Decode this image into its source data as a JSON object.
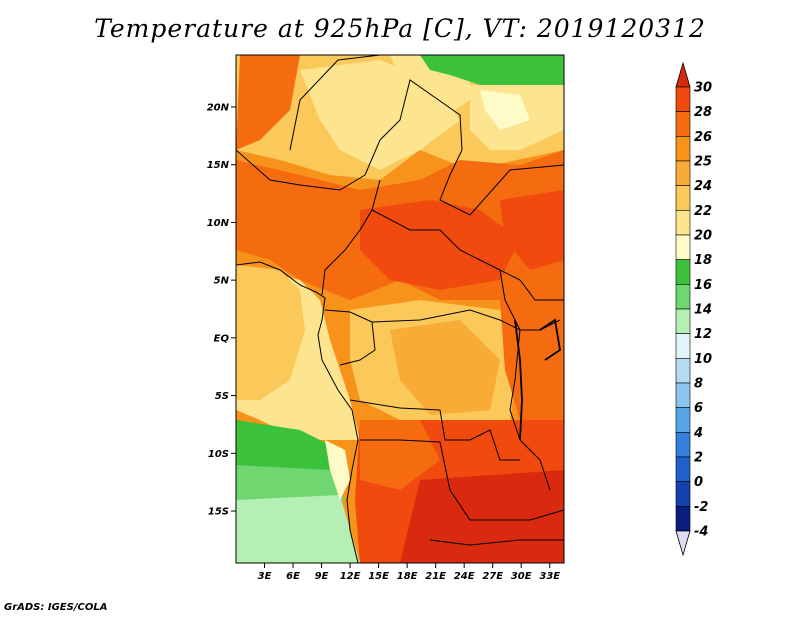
{
  "title": "Temperature at 925hPa [C], VT: 2019120312",
  "footer": "GrADS: IGES/COLA",
  "map": {
    "variable": "temperature_925hPa",
    "units": "C",
    "valid_time": "2019120312",
    "lat_range": [
      -19.5,
      24.5
    ],
    "lon_range": [
      0,
      34.5
    ],
    "lat_ticks": [
      {
        "lat": 20,
        "label": "20N"
      },
      {
        "lat": 15,
        "label": "15N"
      },
      {
        "lat": 10,
        "label": "10N"
      },
      {
        "lat": 5,
        "label": "5N"
      },
      {
        "lat": 0,
        "label": "EQ"
      },
      {
        "lat": -5,
        "label": "5S"
      },
      {
        "lat": -10,
        "label": "10S"
      },
      {
        "lat": -15,
        "label": "15S"
      }
    ],
    "lon_ticks": [
      {
        "lon": 3,
        "label": "3E"
      },
      {
        "lon": 6,
        "label": "6E"
      },
      {
        "lon": 9,
        "label": "9E"
      },
      {
        "lon": 12,
        "label": "12E"
      },
      {
        "lon": 15,
        "label": "15E"
      },
      {
        "lon": 18,
        "label": "18E"
      },
      {
        "lon": 21,
        "label": "21E"
      },
      {
        "lon": 24,
        "label": "24E"
      },
      {
        "lon": 27,
        "label": "27E"
      },
      {
        "lon": 30,
        "label": "30E"
      },
      {
        "lon": 33,
        "label": "33E"
      }
    ]
  },
  "colorbar": {
    "levels": [
      {
        "label": "30",
        "color": "#d92a0f"
      },
      {
        "label": "28",
        "color": "#f04a0f"
      },
      {
        "label": "26",
        "color": "#f46b10"
      },
      {
        "label": "25",
        "color": "#f7921a"
      },
      {
        "label": "24",
        "color": "#f9ac35"
      },
      {
        "label": "22",
        "color": "#fbc85a"
      },
      {
        "label": "20",
        "color": "#fde590"
      },
      {
        "label": "18",
        "color": "#fffbc8"
      },
      {
        "label": "16",
        "color": "#3cc13c"
      },
      {
        "label": "14",
        "color": "#70d770"
      },
      {
        "label": "12",
        "color": "#b4f0b4"
      },
      {
        "label": "10",
        "color": "#e1f4fa"
      },
      {
        "label": "8",
        "color": "#b3dcf2"
      },
      {
        "label": "6",
        "color": "#8cc5ee"
      },
      {
        "label": "4",
        "color": "#5aa5e6"
      },
      {
        "label": "2",
        "color": "#3480dc"
      },
      {
        "label": "0",
        "color": "#2060cc"
      },
      {
        "label": "-2",
        "color": "#1440b0"
      },
      {
        "label": "-4",
        "color": "#0a1e80"
      }
    ],
    "top_arrow_color": "#d92a0f",
    "bottom_arrow_color": "#dcdcf5"
  }
}
